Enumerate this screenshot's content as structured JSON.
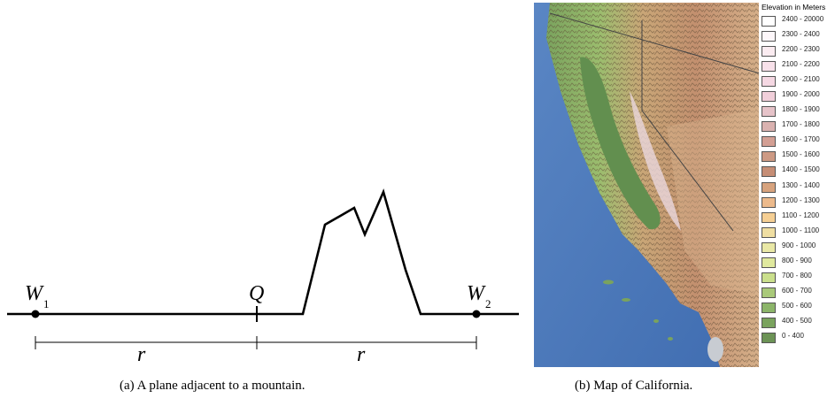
{
  "figure_a": {
    "caption": "(a)  A plane adjacent to a mountain.",
    "labels": {
      "w1_main": "W",
      "w1_sub": "1",
      "q": "Q",
      "w2_main": "W",
      "w2_sub": "2",
      "r_left": "r",
      "r_right": "r"
    }
  },
  "figure_b": {
    "caption": "(b)  Map of California.",
    "legend_title": "Elevation in Meters",
    "legend": [
      {
        "label": "2400 - 20000",
        "color": "#ffffff"
      },
      {
        "label": "2300 - 2400",
        "color": "#fdf7fa"
      },
      {
        "label": "2200 - 2300",
        "color": "#fbecf1"
      },
      {
        "label": "2100 - 2200",
        "color": "#f8e1ea"
      },
      {
        "label": "2000 - 2100",
        "color": "#f5d8e3"
      },
      {
        "label": "1900 - 2000",
        "color": "#f1cfda"
      },
      {
        "label": "1800 - 1900",
        "color": "#e6c3c9"
      },
      {
        "label": "1700 - 1800",
        "color": "#dab2b0"
      },
      {
        "label": "1600 - 1700",
        "color": "#d39f94"
      },
      {
        "label": "1500 - 1600",
        "color": "#cd9a84"
      },
      {
        "label": "1400 - 1500",
        "color": "#c68e76"
      },
      {
        "label": "1300 - 1400",
        "color": "#d7a37e"
      },
      {
        "label": "1200 - 1300",
        "color": "#ecba8c"
      },
      {
        "label": "1100 - 1200",
        "color": "#f5cf94"
      },
      {
        "label": "1000 - 1100",
        "color": "#efdea2"
      },
      {
        "label": "900 - 1000",
        "color": "#e9e8a6"
      },
      {
        "label": "800 -  900",
        "color": "#e0e99e"
      },
      {
        "label": "700 -  800",
        "color": "#cadf8c"
      },
      {
        "label": "600 -  700",
        "color": "#a9c97a"
      },
      {
        "label": "500 -  600",
        "color": "#8cb56a"
      },
      {
        "label": "400 -  500",
        "color": "#7aa35e"
      },
      {
        "label": "0 -  400",
        "color": "#6c9356"
      }
    ]
  }
}
